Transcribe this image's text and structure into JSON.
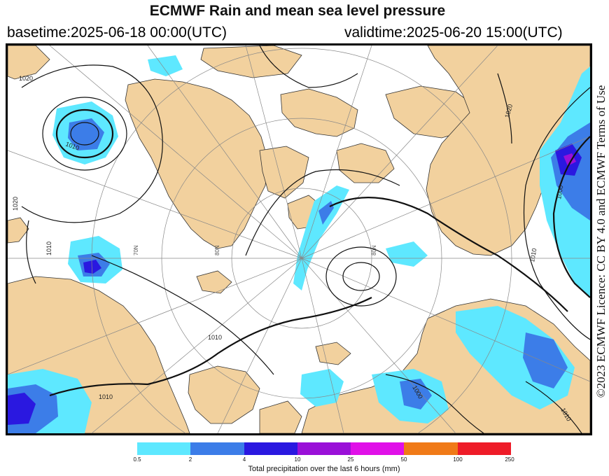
{
  "title": "ECMWF Rain and mean sea level pressure",
  "basetime": "basetime:2025-06-18 00:00(UTC)",
  "validtime": "validtime:2025-06-20 15:00(UTC)",
  "credit": "©2023 ECMWF Licence: CC BY 4.0 and ECMWF Terms of Use",
  "colors": {
    "land": "#f2d19e",
    "ocean": "#ffffff",
    "coast": "#333333",
    "isobar": "#111111",
    "graticule": "#888888"
  },
  "isobar_labels": [
    "1010",
    "1020",
    "1020",
    "1010",
    "1010",
    "1000",
    "1010",
    "1010",
    "1000",
    "1020",
    "1010"
  ],
  "graticule_labels": [
    "70N",
    "80N",
    "80N"
  ],
  "legend": {
    "caption": "Total precipitation over the last 6 hours (mm)",
    "ticks": [
      "0.5",
      "2",
      "4",
      "10",
      "25",
      "50",
      "100",
      "250"
    ],
    "colors": [
      "#5ee8ff",
      "#3c7de8",
      "#2a18e0",
      "#9a10d8",
      "#e010e8",
      "#f07a18",
      "#ee1c28"
    ]
  }
}
